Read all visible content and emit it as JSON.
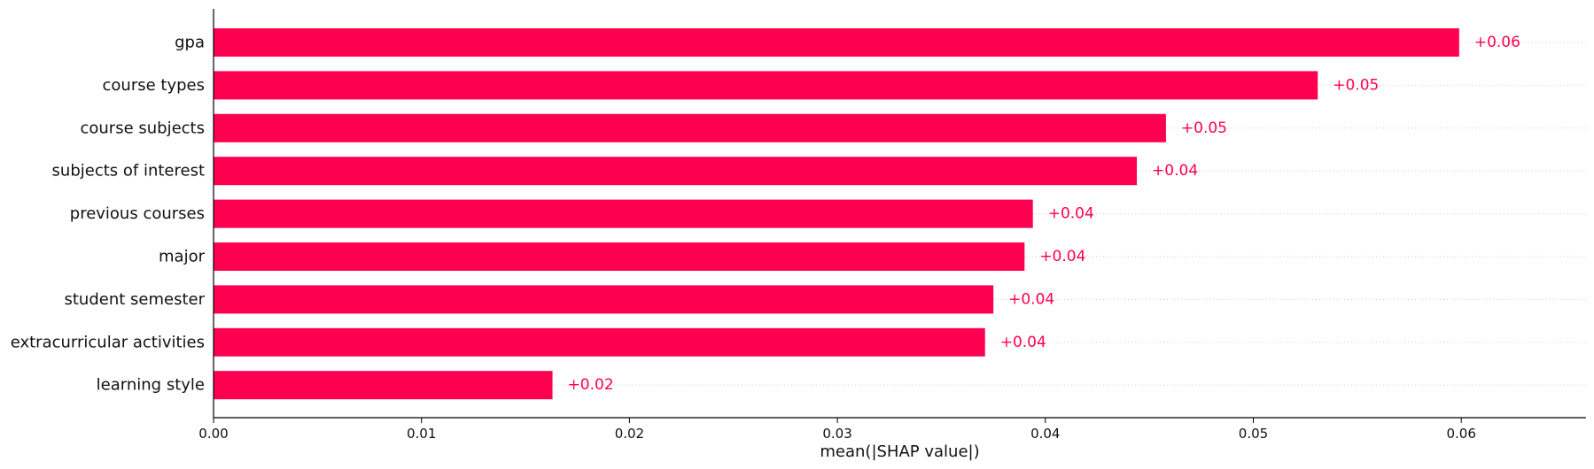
{
  "chart_data": {
    "type": "bar",
    "orientation": "horizontal",
    "categories": [
      "gpa",
      "course types",
      "course subjects",
      "subjects of interest",
      "previous courses",
      "major",
      "student semester",
      "extracurricular activities",
      "learning style"
    ],
    "values": [
      0.0599,
      0.0531,
      0.0458,
      0.0444,
      0.0394,
      0.039,
      0.0375,
      0.0371,
      0.0163
    ],
    "value_labels": [
      "+0.06",
      "+0.05",
      "+0.05",
      "+0.04",
      "+0.04",
      "+0.04",
      "+0.04",
      "+0.04",
      "+0.02"
    ],
    "xlabel": "mean(|SHAP value|)",
    "ylabel": "",
    "title": "",
    "xlim": [
      0.0,
      0.066
    ],
    "xticks": [
      0.0,
      0.01,
      0.02,
      0.03,
      0.04,
      0.05,
      0.06
    ],
    "xtick_labels": [
      "0.00",
      "0.01",
      "0.02",
      "0.03",
      "0.04",
      "0.05",
      "0.06"
    ],
    "grid": "dotted row guides",
    "bar_color": "#ff0051",
    "label_color": "#ff0051"
  }
}
